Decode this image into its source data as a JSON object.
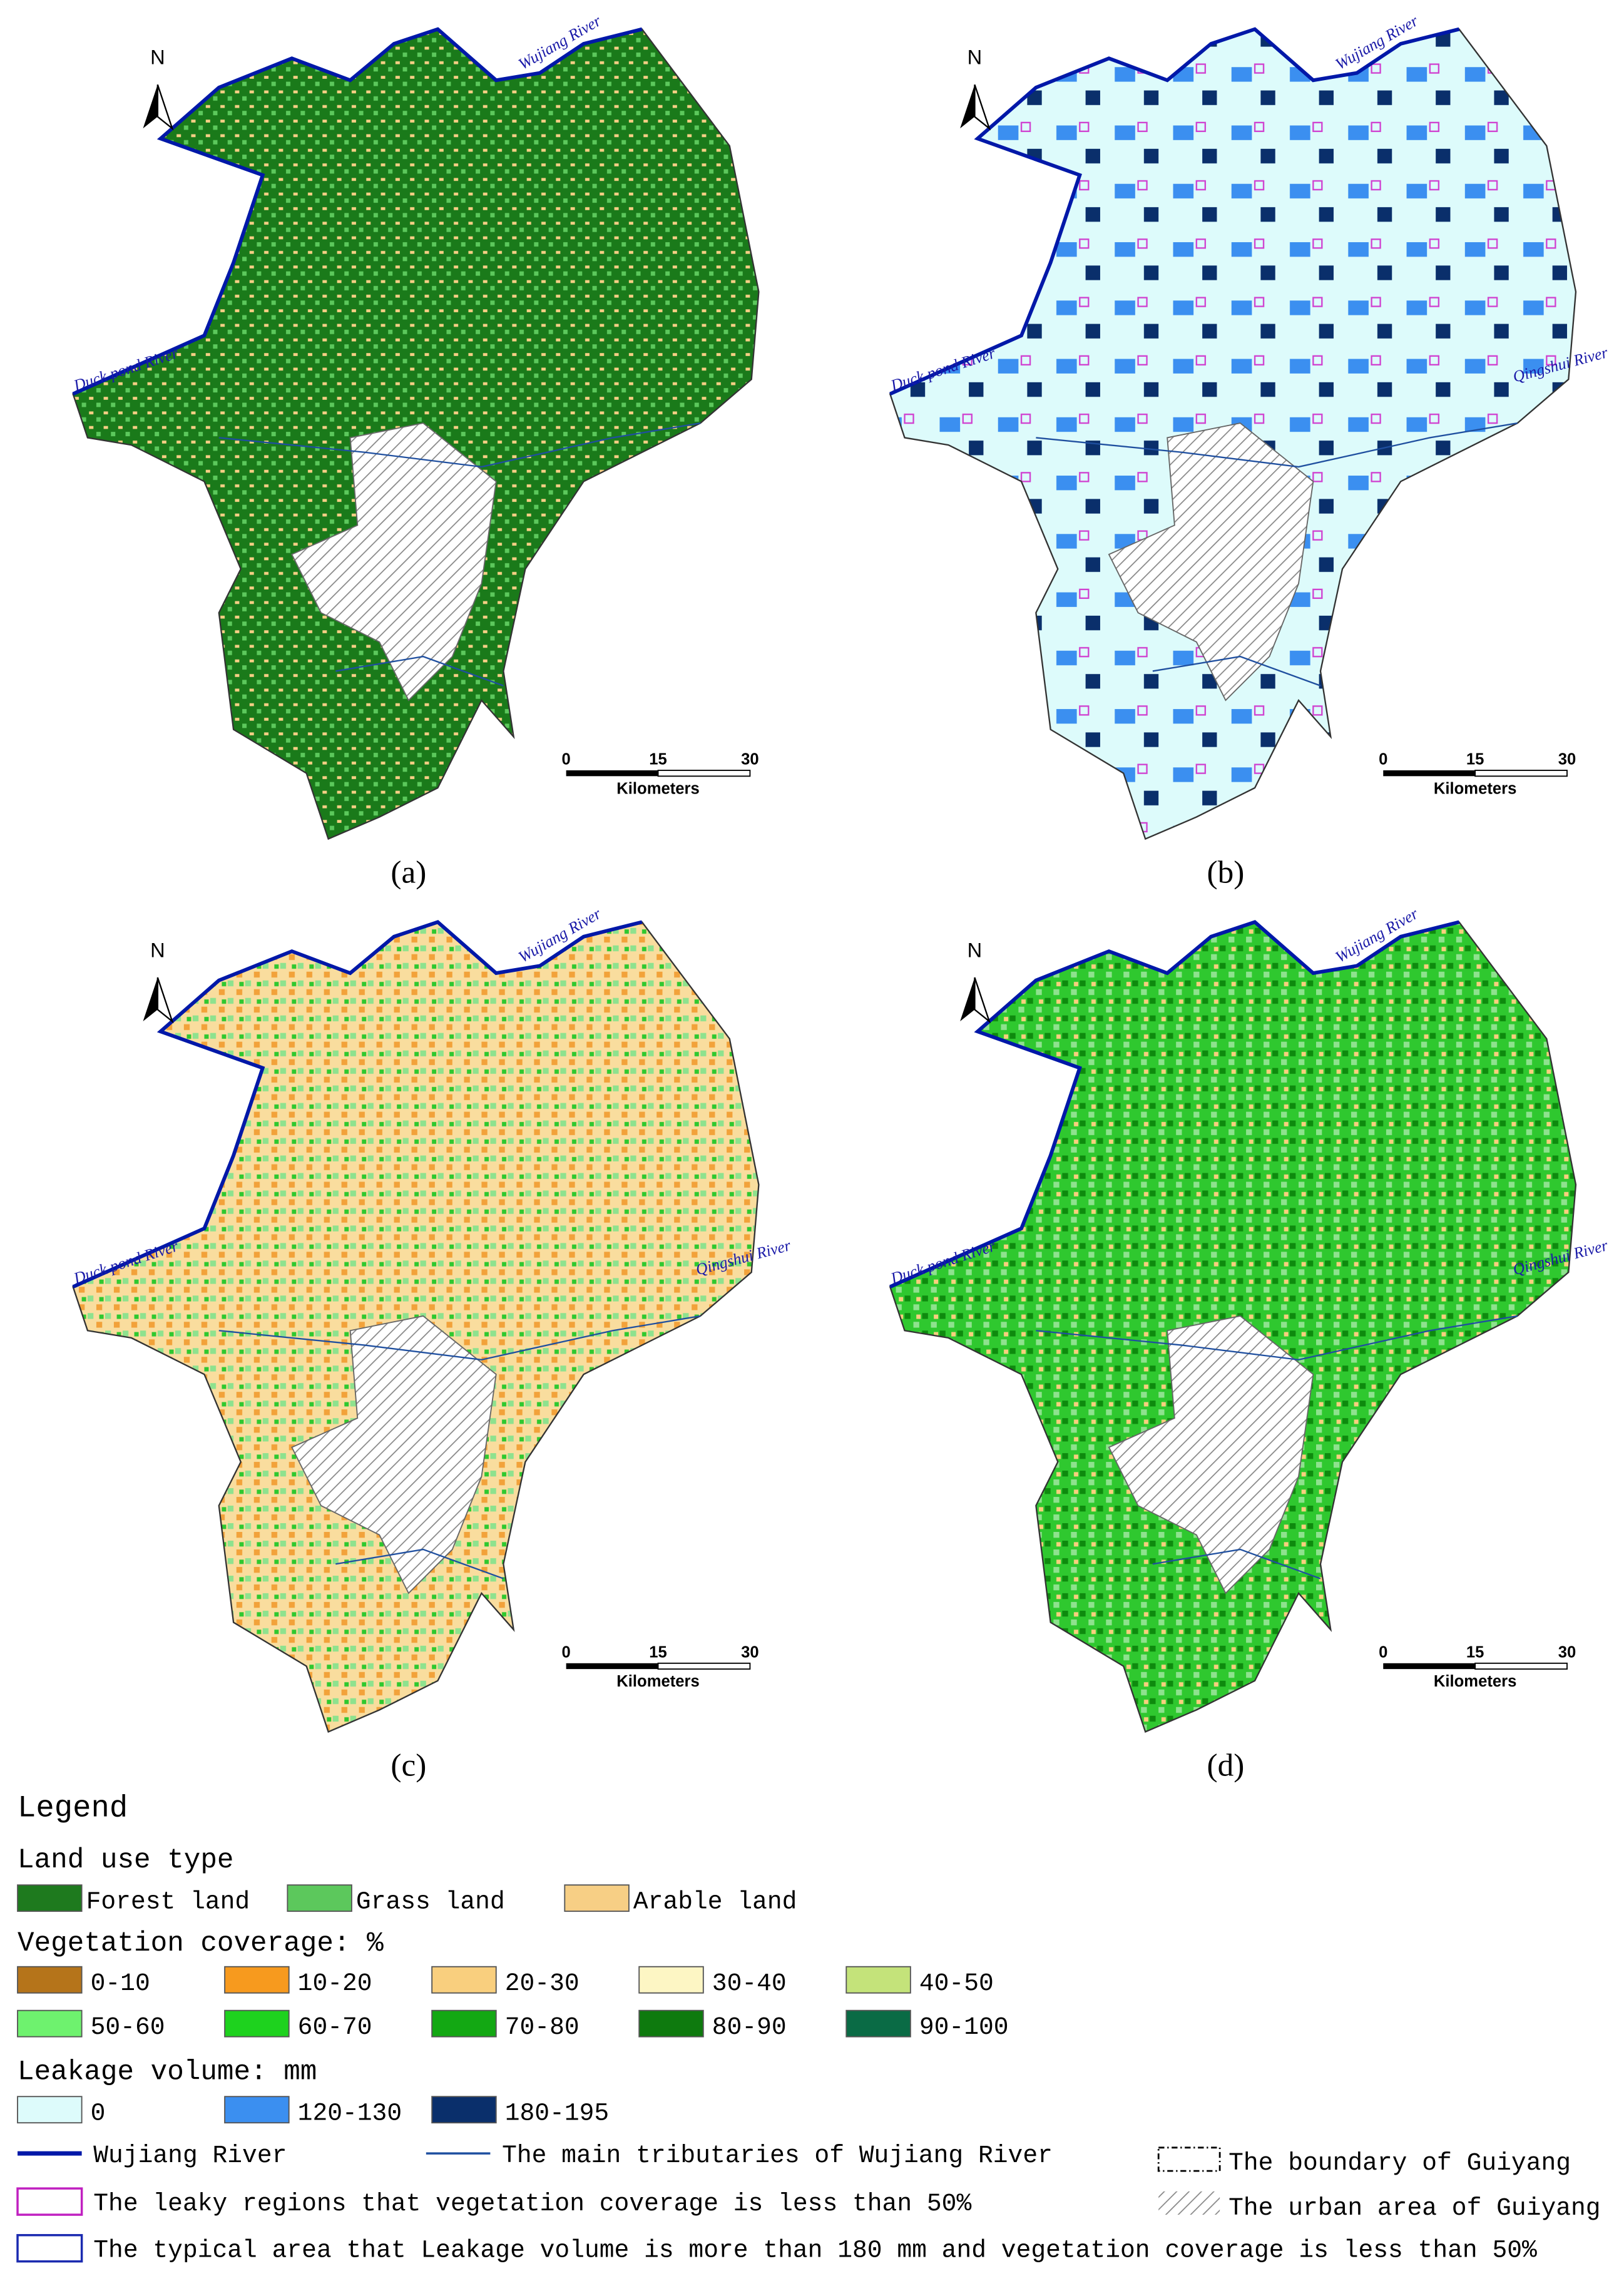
{
  "panels": [
    {
      "label": "(a)",
      "north": "N",
      "scale_ticks": [
        0,
        15,
        30
      ],
      "scale_unit": "Kilometers",
      "rivers": [
        "Wujiang River",
        "Duck pond River"
      ]
    },
    {
      "label": "(b)",
      "north": "N",
      "scale_ticks": [
        0,
        15,
        30
      ],
      "scale_unit": "Kilometers",
      "rivers": [
        "Wujiang River",
        "Duck pond River",
        "Qingshui River"
      ]
    },
    {
      "label": "(c)",
      "north": "N",
      "scale_ticks": [
        0,
        15,
        30
      ],
      "scale_unit": "Kilometers",
      "rivers": [
        "Wujiang River",
        "Duck pond River",
        "Qingshui River"
      ]
    },
    {
      "label": "(d)",
      "north": "N",
      "scale_ticks": [
        0,
        15,
        30
      ],
      "scale_unit": "Kilometers",
      "rivers": [
        "Wujiang River",
        "Duck pond River",
        "Qingshui River"
      ]
    }
  ],
  "legend": {
    "title": "Legend",
    "land_use": {
      "title": "Land use type",
      "items": [
        {
          "label": "Forest land",
          "color": "#1e7a1e"
        },
        {
          "label": "Grass land",
          "color": "#5cc85c"
        },
        {
          "label": "Arable land",
          "color": "#f7cf85"
        }
      ]
    },
    "vegetation": {
      "title": "Vegetation coverage: %",
      "items": [
        {
          "label": "0-10",
          "color": "#b5741a"
        },
        {
          "label": "10-20",
          "color": "#f79a1e"
        },
        {
          "label": "20-30",
          "color": "#f9cf7e"
        },
        {
          "label": "30-40",
          "color": "#fdf6c4"
        },
        {
          "label": "40-50",
          "color": "#c4e37a"
        },
        {
          "label": "50-60",
          "color": "#6ef26e"
        },
        {
          "label": "60-70",
          "color": "#1ed21e"
        },
        {
          "label": "70-80",
          "color": "#13a813"
        },
        {
          "label": "80-90",
          "color": "#0e7a0e"
        },
        {
          "label": "90-100",
          "color": "#0a6b45"
        }
      ]
    },
    "leakage": {
      "title": "Leakage volume: mm",
      "items": [
        {
          "label": "0",
          "color": "#ddfbfb"
        },
        {
          "label": "120-130",
          "color": "#3b8ff0"
        },
        {
          "label": "180-195",
          "color": "#0a2f6b"
        }
      ]
    },
    "lines": [
      {
        "label": "Wujiang River"
      },
      {
        "label": "The main tributaries of Wujiang River"
      },
      {
        "label": "The boundary of Guiyang"
      },
      {
        "label": "The leaky regions that vegetation coverage is less than 50%"
      },
      {
        "label": "The urban area of Guiyang"
      },
      {
        "label": "The typical area that Leakage volume is more than 180 mm and vegetation coverage is less than 50%"
      }
    ]
  }
}
